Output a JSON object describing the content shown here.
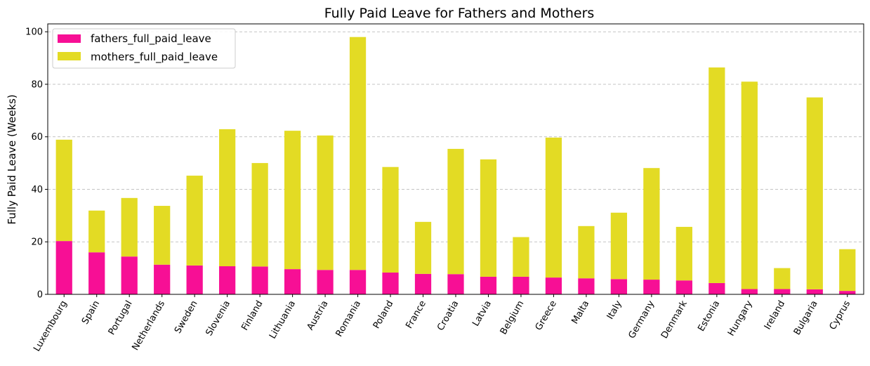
{
  "chart_data": {
    "type": "bar",
    "stacked": true,
    "title": "Fully Paid Leave for Fathers and Mothers",
    "xlabel": "",
    "ylabel": "Fully Paid Leave (Weeks)",
    "ylim": [
      0,
      103
    ],
    "yticks": [
      0,
      20,
      40,
      60,
      80,
      100
    ],
    "grid": "y-dashed",
    "legend_position": "top-left",
    "categories": [
      "Luxembourg",
      "Spain",
      "Portugal",
      "Netherlands",
      "Sweden",
      "Slovenia",
      "Finland",
      "Lithuania",
      "Austria",
      "Romania",
      "Poland",
      "France",
      "Croatia",
      "Latvia",
      "Belgium",
      "Greece",
      "Malta",
      "Italy",
      "Germany",
      "Denmark",
      "Estonia",
      "Hungary",
      "Ireland",
      "Bulgaria",
      "Cyprus"
    ],
    "series": [
      {
        "name": "fathers_full_paid_leave",
        "color": "#f70f95",
        "values": [
          20.3,
          16.0,
          14.4,
          11.3,
          11.0,
          10.7,
          10.6,
          9.6,
          9.3,
          9.3,
          8.3,
          7.8,
          7.7,
          6.7,
          6.7,
          6.4,
          6.1,
          5.8,
          5.6,
          5.3,
          4.3,
          2.0,
          2.0,
          1.9,
          1.3
        ]
      },
      {
        "name": "mothers_full_paid_leave",
        "color": "#e3db24",
        "values": [
          38.6,
          15.9,
          22.3,
          22.4,
          34.2,
          52.2,
          39.4,
          52.7,
          51.2,
          88.7,
          40.2,
          19.8,
          47.7,
          44.7,
          15.1,
          53.3,
          19.9,
          25.3,
          42.5,
          20.4,
          82.1,
          79.0,
          8.0,
          73.1,
          15.9
        ]
      }
    ]
  }
}
